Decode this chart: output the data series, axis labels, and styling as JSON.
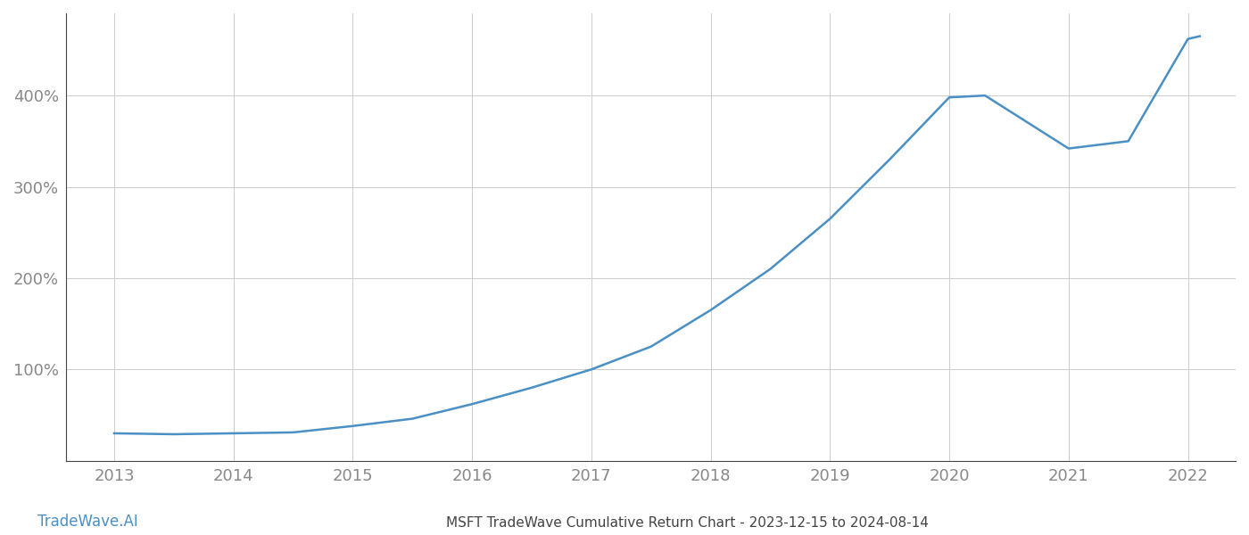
{
  "x_years": [
    2013,
    2013.5,
    2014,
    2014.5,
    2015,
    2015.5,
    2016,
    2016.5,
    2017,
    2017.5,
    2018,
    2018.5,
    2019,
    2019.5,
    2020,
    2020.3,
    2021,
    2021.5,
    2022,
    2022.1
  ],
  "y_values": [
    30,
    29,
    30,
    31,
    38,
    46,
    62,
    80,
    100,
    125,
    165,
    210,
    265,
    330,
    398,
    400,
    342,
    350,
    462,
    465
  ],
  "line_color": "#4a90c4",
  "line_width": 1.8,
  "background_color": "#ffffff",
  "grid_color": "#cccccc",
  "title": "MSFT TradeWave Cumulative Return Chart - 2023-12-15 to 2024-08-14",
  "watermark": "TradeWave.AI",
  "xlim": [
    2012.6,
    2022.4
  ],
  "ylim": [
    0,
    490
  ],
  "yticks": [
    100,
    200,
    300,
    400
  ],
  "xticks": [
    2013,
    2014,
    2015,
    2016,
    2017,
    2018,
    2019,
    2020,
    2021,
    2022
  ],
  "title_fontsize": 11,
  "watermark_fontsize": 12,
  "tick_fontsize": 13,
  "tick_color": "#888888",
  "title_color": "#444444",
  "watermark_color": "#4a90c4",
  "spine_color": "#444444"
}
